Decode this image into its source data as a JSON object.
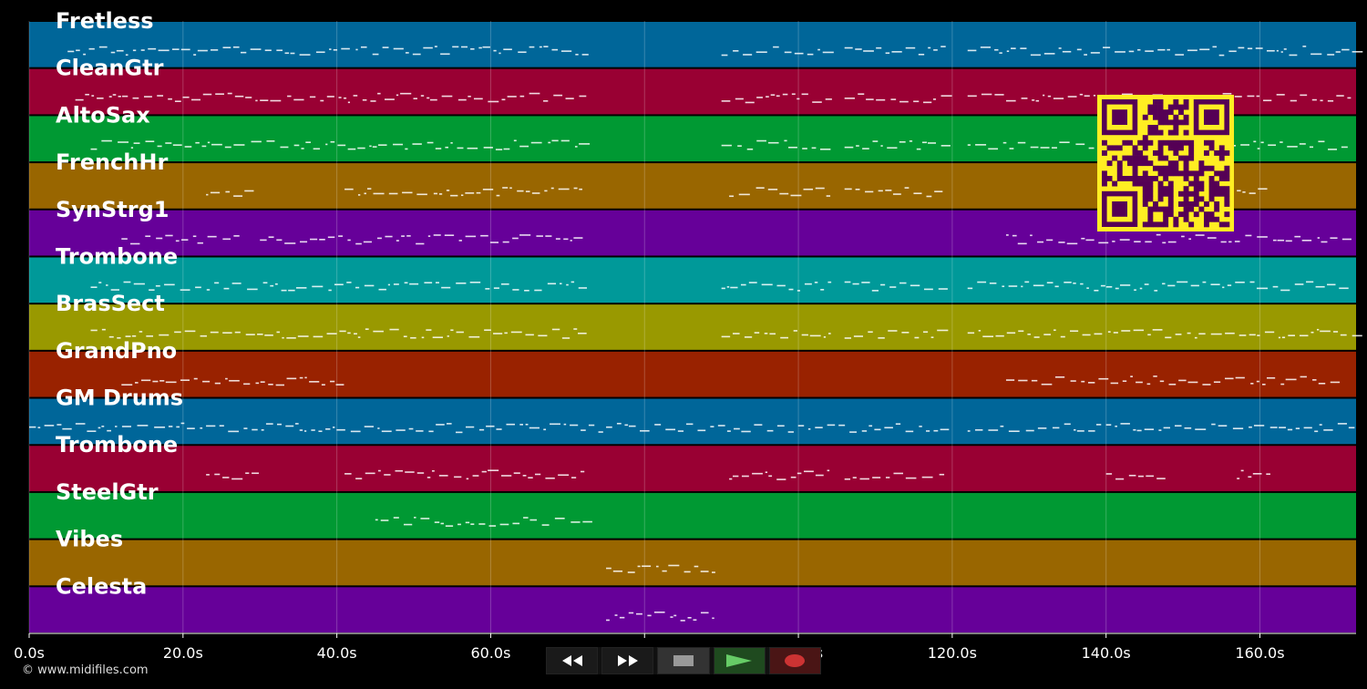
{
  "tracks": [
    {
      "name": "Fretless",
      "color": "#006699"
    },
    {
      "name": "CleanGtr",
      "color": "#990033"
    },
    {
      "name": "AltoSax",
      "color": "#009933"
    },
    {
      "name": "FrenchHr",
      "color": "#996600"
    },
    {
      "name": "SynStrg1",
      "color": "#660099"
    },
    {
      "name": "Trombone",
      "color": "#009999"
    },
    {
      "name": "BrasSect",
      "color": "#999900"
    },
    {
      "name": "GrandPno",
      "color": "#992200"
    },
    {
      "name": "GM Drums",
      "color": "#006699"
    },
    {
      "name": "Trombone",
      "color": "#990033"
    },
    {
      "name": "SteelGtr",
      "color": "#009933"
    },
    {
      "name": "Vibes",
      "color": "#996600"
    },
    {
      "name": "Celesta",
      "color": "#660099"
    }
  ],
  "timeline": {
    "x_range_seconds": [
      0,
      172.5
    ],
    "ticks": [
      {
        "value": 0,
        "label": "0.0s"
      },
      {
        "value": 20,
        "label": "20.0s"
      },
      {
        "value": 40,
        "label": "40.0s"
      },
      {
        "value": 60,
        "label": "60.0s"
      },
      {
        "value": 80,
        "label": "80.0s"
      },
      {
        "value": 100,
        "label": "100.0s"
      },
      {
        "value": 120,
        "label": "120.0s"
      },
      {
        "value": 140,
        "label": "140.0s"
      },
      {
        "value": 160,
        "label": "160.0s"
      }
    ]
  },
  "copyright": "© www.midifiles.com",
  "transport": {
    "rewind": "rewind-icon",
    "fast_forward": "fast-forward-icon",
    "stop": "stop-icon",
    "play": "play-icon",
    "record": "record-icon",
    "colors": {
      "stop": "#999999",
      "play": "#66cc66",
      "record": "#cc3333"
    }
  },
  "qr_code": {
    "fg": "#550055",
    "bg": "#ffee22"
  }
}
